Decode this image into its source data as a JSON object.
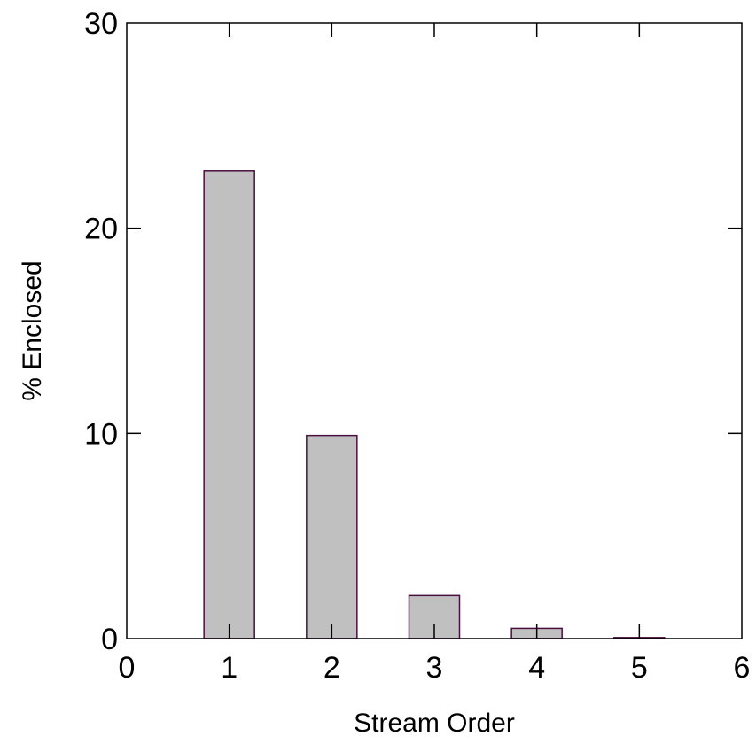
{
  "chart_data": {
    "type": "bar",
    "title": "",
    "xlabel": "Stream Order",
    "ylabel": "% Enclosed",
    "x": [
      1,
      2,
      3,
      4,
      5
    ],
    "values": [
      22.8,
      9.9,
      2.1,
      0.5,
      0.05
    ],
    "xlim": [
      0,
      6
    ],
    "ylim": [
      0,
      30
    ],
    "xticks": [
      "0",
      "1",
      "2",
      "3",
      "4",
      "5",
      "6"
    ],
    "yticks": [
      "0",
      "10",
      "20",
      "30"
    ],
    "grid": false,
    "legend": "none",
    "bar_fill": "#c0c0c0",
    "bar_stroke": "#4a0f3f",
    "axis_color": "#000000"
  }
}
